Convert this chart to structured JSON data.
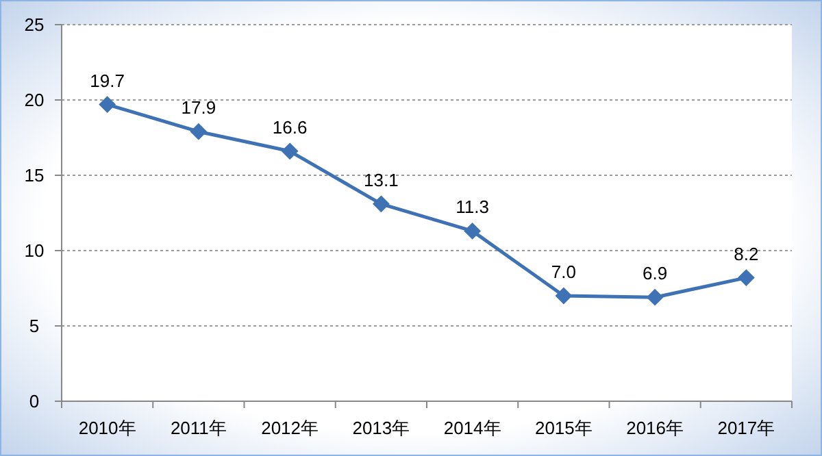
{
  "chart_data": {
    "type": "line",
    "categories": [
      "2010年",
      "2011年",
      "2012年",
      "2013年",
      "2014年",
      "2015年",
      "2016年",
      "2017年"
    ],
    "values": [
      19.7,
      17.9,
      16.6,
      13.1,
      11.3,
      7.0,
      6.9,
      8.2
    ],
    "value_labels": [
      "19.7",
      "17.9",
      "16.6",
      "13.1",
      "11.3",
      "7.0",
      "6.9",
      "8.2"
    ],
    "color": "#3f72b5",
    "marker": "diamond",
    "ylim": [
      0,
      25
    ],
    "yticks": [
      0,
      5,
      10,
      15,
      20,
      25
    ],
    "grid": "y"
  }
}
